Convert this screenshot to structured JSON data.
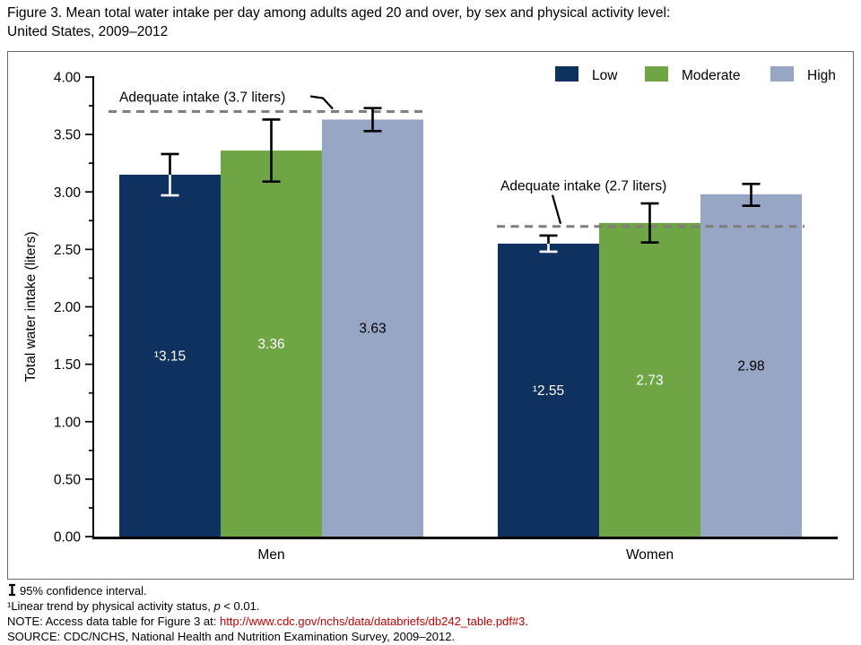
{
  "title": {
    "line1": "Figure 3. Mean total water intake per day among adults aged 20 and over, by sex and physical activity level:",
    "line2": "United States, 2009–2012"
  },
  "chart_data": {
    "type": "bar",
    "title": "Mean total water intake per day among adults aged 20 and over, by sex and physical activity level: United States, 2009–2012",
    "xlabel": "",
    "ylabel": "Total water intake (liters)",
    "ylim": [
      0,
      4.0
    ],
    "ytick_step": 0.5,
    "yminor_step": 0.25,
    "ytick_format": "2dp",
    "grid": false,
    "legend_position": "top-right",
    "error_bars": "95% CI",
    "categories": [
      "Men",
      "Women"
    ],
    "series": [
      {
        "name": "Low",
        "color": "#0e3160",
        "values": [
          3.15,
          2.55
        ],
        "ci": [
          [
            2.97,
            3.33
          ],
          [
            2.48,
            2.62
          ]
        ],
        "value_labels": [
          "¹3.15",
          "¹2.55"
        ],
        "label_color": "#ffffff",
        "ci_inside_color": "#ffffff"
      },
      {
        "name": "Moderate",
        "color": "#6fa544",
        "values": [
          3.36,
          2.73
        ],
        "ci": [
          [
            3.09,
            3.63
          ],
          [
            2.56,
            2.9
          ]
        ],
        "value_labels": [
          "3.36",
          "2.73"
        ],
        "label_color": "#ffffff",
        "ci_inside_color": "#000000"
      },
      {
        "name": "High",
        "color": "#98a6c6",
        "values": [
          3.63,
          2.98
        ],
        "ci": [
          [
            3.53,
            3.73
          ],
          [
            2.88,
            3.07
          ]
        ],
        "value_labels": [
          "3.63",
          "2.98"
        ],
        "label_color": "#000000",
        "ci_inside_color": "#000000"
      }
    ],
    "annotations": [
      {
        "group": 0,
        "text": "Adequate intake (3.7 liters)",
        "value": 3.7
      },
      {
        "group": 1,
        "text": "Adequate intake (2.7 liters)",
        "value": 2.7
      }
    ],
    "reference_line_color": "#7f7f7f"
  },
  "footnotes": {
    "ci": "95% confidence interval.",
    "trend": "¹Linear trend by physical activity status, ",
    "trend_var": "p",
    "trend_after": " < 0.01.",
    "note_prefix": "NOTE: Access data table for Figure 3 at: ",
    "note_link": "http://www.cdc.gov/nchs/data/databriefs/db242_table.pdf#3",
    "note_suffix": ".",
    "source": "SOURCE: CDC/NCHS, National Health and Nutrition Examination Survey, 2009–2012."
  }
}
